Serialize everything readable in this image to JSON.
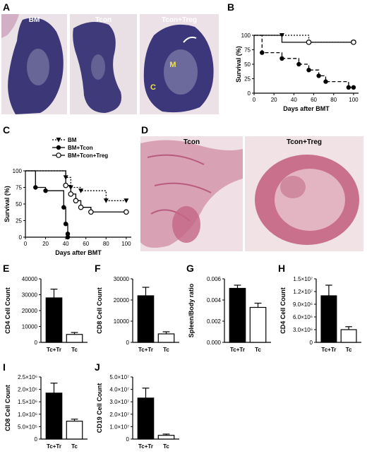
{
  "panel_letters": [
    "A",
    "B",
    "C",
    "D",
    "E",
    "F",
    "G",
    "H",
    "I",
    "J"
  ],
  "histology_a": {
    "labels": [
      "BM",
      "Tcon",
      "Tcon+Treg"
    ],
    "region_m": "M",
    "region_c": "C"
  },
  "histology_d": {
    "labels": [
      "Tcon",
      "Tcon+Treg"
    ]
  },
  "colors": {
    "histology_a_bg": "#e8dfe6",
    "histology_a_tissue": "#3f3a7c",
    "histology_d_bg": "#f1dfe4",
    "histology_d_tissue": "#c8708c",
    "bar_fill": "#000000"
  },
  "chart_data": [
    {
      "id": "B",
      "type": "line",
      "xlabel": "Days after BMT",
      "ylabel": "Survival (%)",
      "xlim": [
        0,
        105
      ],
      "ylim": [
        0,
        100
      ],
      "xticks": [
        0,
        20,
        40,
        60,
        80,
        100
      ],
      "yticks": [
        0,
        25,
        50,
        75,
        100
      ],
      "series": [
        {
          "style": "dashed",
          "marker": "circle-filled",
          "x": [
            0,
            8,
            8,
            28,
            28,
            45,
            45,
            55,
            55,
            65,
            65,
            72,
            72,
            95,
            95,
            100
          ],
          "y": [
            100,
            100,
            70,
            70,
            60,
            60,
            50,
            50,
            40,
            40,
            30,
            30,
            20,
            20,
            10,
            10
          ]
        },
        {
          "style": "dotted",
          "marker": "triangle-down-filled",
          "x": [
            0,
            28,
            28,
            55,
            55,
            100
          ],
          "y": [
            100,
            100,
            100,
            100,
            88,
            88
          ]
        },
        {
          "style": "solid",
          "marker": "circle-open",
          "x": [
            0,
            28,
            28,
            55,
            55,
            100
          ],
          "y": [
            100,
            100,
            88,
            88,
            88,
            88
          ]
        }
      ],
      "markers": [
        {
          "series": 0,
          "x": [
            8,
            28,
            45,
            55,
            65,
            72,
            95,
            100
          ],
          "y": [
            70,
            60,
            50,
            40,
            30,
            20,
            10,
            10
          ]
        },
        {
          "series": 1,
          "x": [
            28,
            100
          ],
          "y": [
            100,
            88
          ]
        },
        {
          "series": 2,
          "x": [
            55,
            100
          ],
          "y": [
            88,
            88
          ]
        }
      ]
    },
    {
      "id": "C",
      "type": "line",
      "xlabel": "Days after BMT",
      "ylabel": "Survival (%)",
      "xlim": [
        0,
        105
      ],
      "ylim": [
        0,
        100
      ],
      "xticks": [
        0,
        20,
        40,
        60,
        80,
        100
      ],
      "yticks": [
        0,
        25,
        50,
        75,
        100
      ],
      "legend": [
        "BM",
        "BM+Tcon",
        "BM+Tcon+Treg"
      ],
      "series": [
        {
          "name": "BM",
          "style": "dotted",
          "marker": "triangle-down-filled",
          "x": [
            0,
            40,
            40,
            45,
            45,
            55,
            55,
            80,
            80,
            100
          ],
          "y": [
            100,
            100,
            90,
            90,
            75,
            75,
            70,
            70,
            55,
            55
          ],
          "mx": [
            40,
            45,
            55,
            80,
            100
          ],
          "my": [
            90,
            75,
            70,
            55,
            55
          ]
        },
        {
          "name": "BM+Tcon",
          "style": "solid",
          "marker": "circle-filled",
          "x": [
            0,
            10,
            10,
            20,
            20,
            38,
            38,
            40,
            40,
            42,
            42,
            42
          ],
          "y": [
            100,
            100,
            75,
            75,
            70,
            70,
            45,
            45,
            20,
            20,
            5,
            0
          ],
          "mx": [
            10,
            20,
            38,
            40,
            42,
            42
          ],
          "my": [
            75,
            70,
            45,
            20,
            5,
            0
          ]
        },
        {
          "name": "BM+Tcon+Treg",
          "style": "solid",
          "marker": "circle-open",
          "x": [
            0,
            40,
            40,
            45,
            45,
            50,
            50,
            55,
            55,
            65,
            65,
            100
          ],
          "y": [
            100,
            100,
            78,
            78,
            65,
            65,
            55,
            55,
            45,
            45,
            38,
            38
          ],
          "mx": [
            40,
            45,
            50,
            55,
            65,
            100
          ],
          "my": [
            78,
            65,
            55,
            45,
            38,
            38
          ]
        }
      ]
    },
    {
      "id": "E",
      "type": "bar",
      "ylabel": "CD4 Cell Count",
      "categories": [
        "Tc+Tr",
        "Tc"
      ],
      "values": [
        28000,
        5000
      ],
      "errors": [
        5500,
        1200
      ],
      "fills": [
        "#000000",
        "#ffffff"
      ],
      "ylim": [
        0,
        40000
      ],
      "yticks": [
        0,
        10000,
        20000,
        30000,
        40000
      ],
      "yticklabels": [
        "0",
        "10000",
        "20000",
        "30000",
        "40000"
      ]
    },
    {
      "id": "F",
      "type": "bar",
      "ylabel": "CD8 Cell Count",
      "categories": [
        "Tc+Tr",
        "Tc"
      ],
      "values": [
        22000,
        4000
      ],
      "errors": [
        4000,
        1000
      ],
      "fills": [
        "#000000",
        "#ffffff"
      ],
      "ylim": [
        0,
        30000
      ],
      "yticks": [
        0,
        10000,
        20000,
        30000
      ],
      "yticklabels": [
        "0",
        "10000",
        "20000",
        "30000"
      ]
    },
    {
      "id": "G",
      "type": "bar",
      "ylabel": "Spleen/Body ratio",
      "categories": [
        "Tc+Tr",
        "Tc"
      ],
      "values": [
        0.0051,
        0.0033
      ],
      "errors": [
        0.0003,
        0.0004
      ],
      "fills": [
        "#000000",
        "#ffffff"
      ],
      "ylim": [
        0,
        0.006
      ],
      "yticks": [
        0,
        0.002,
        0.004,
        0.006
      ],
      "yticklabels": [
        "0.000",
        "0.002",
        "0.004",
        "0.006"
      ]
    },
    {
      "id": "H",
      "type": "bar",
      "ylabel": "CD4 Cell Count",
      "categories": [
        "Tc+Tr",
        "Tc"
      ],
      "values": [
        11000000,
        3000000
      ],
      "errors": [
        2500000,
        700000
      ],
      "fills": [
        "#000000",
        "#ffffff"
      ],
      "ylim": [
        0,
        15000000
      ],
      "yticks": [
        0,
        3000000,
        6000000,
        9000000,
        12000000,
        15000000
      ],
      "yticklabels": [
        "0",
        "3.0×10⁶",
        "6.0×10⁶",
        "9.0×10⁶",
        "1.2×10⁷",
        "1.5×10⁷"
      ]
    },
    {
      "id": "I",
      "type": "bar",
      "ylabel": "CD8 Cell Count",
      "categories": [
        "Tc+Tr",
        "Tc"
      ],
      "values": [
        1850000,
        720000
      ],
      "errors": [
        400000,
        80000
      ],
      "fills": [
        "#000000",
        "#ffffff"
      ],
      "ylim": [
        0,
        2500000
      ],
      "yticks": [
        0,
        500000,
        1000000,
        1500000,
        2000000,
        2500000
      ],
      "yticklabels": [
        "0",
        "5.0×10⁵",
        "1.0×10⁶",
        "1.5×10⁶",
        "2.0×10⁶",
        "2.5×10⁶"
      ]
    },
    {
      "id": "J",
      "type": "bar",
      "ylabel": "CD19 Cell Count",
      "categories": [
        "Tc+Tr",
        "Tc"
      ],
      "values": [
        33000000,
        3000000
      ],
      "errors": [
        8000000,
        1000000
      ],
      "fills": [
        "#000000",
        "#ffffff"
      ],
      "ylim": [
        0,
        50000000
      ],
      "yticks": [
        0,
        10000000,
        20000000,
        30000000,
        40000000,
        50000000
      ],
      "yticklabels": [
        "0",
        "1.0×10⁷",
        "2.0×10⁷",
        "3.0×10⁷",
        "4.0×10⁷",
        "5.0×10⁷"
      ]
    }
  ]
}
